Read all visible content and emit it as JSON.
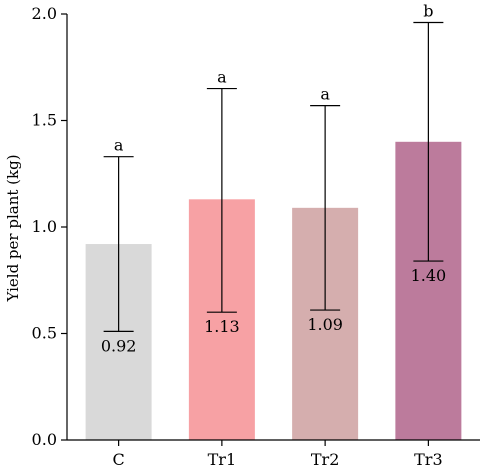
{
  "chart_data": {
    "type": "bar",
    "categories": [
      "C",
      "Tr1",
      "Tr2",
      "Tr3"
    ],
    "values": [
      0.92,
      1.13,
      1.09,
      1.4
    ],
    "value_labels": [
      "0.92",
      "1.13",
      "1.09",
      "1.40"
    ],
    "error_low": [
      0.51,
      0.6,
      0.61,
      0.84
    ],
    "error_high": [
      1.33,
      1.65,
      1.57,
      1.96
    ],
    "significance": [
      "a",
      "a",
      "a",
      "b"
    ],
    "colors": [
      "#d9d9d9",
      "#f7a1a4",
      "#d5aeae",
      "#bc7b9c"
    ],
    "title": "",
    "xlabel": "",
    "ylabel": "Yield per plant (kg)",
    "ylim": [
      0.0,
      2.0
    ],
    "yticks": [
      0.0,
      0.5,
      1.0,
      1.5,
      2.0
    ],
    "ytick_labels": [
      "0.0",
      "0.5",
      "1.0",
      "1.5",
      "2.0"
    ],
    "grid": false,
    "legend": "none"
  }
}
